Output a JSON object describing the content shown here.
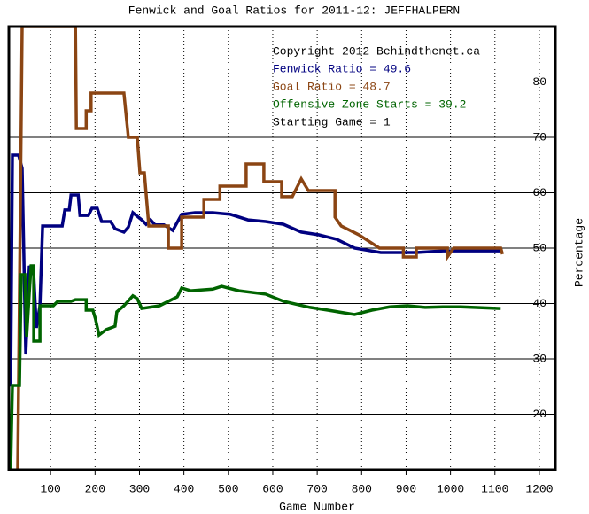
{
  "chart_data": {
    "type": "line",
    "title": "Fenwick and Goal Ratios for 2011-12: JEFFHALPERN",
    "xlabel": "Game Number",
    "ylabel": "Percentage",
    "xlim": [
      6,
      1236
    ],
    "ylim": [
      10,
      90
    ],
    "xticks": [
      100,
      200,
      300,
      400,
      500,
      600,
      700,
      800,
      900,
      1000,
      1100,
      1200
    ],
    "yticks": [
      20,
      30,
      40,
      50,
      60,
      70,
      80
    ],
    "grid": true,
    "legend_lines": [
      {
        "text": "Copyright 2012 Behindthenet.ca",
        "color": "#000000"
      },
      {
        "text": "Fenwick Ratio = 49.6",
        "color": "#000080"
      },
      {
        "text": "Goal Ratio = 48.7",
        "color": "#8b4513"
      },
      {
        "text": "Offensive Zone Starts = 39.2",
        "color": "#006400"
      },
      {
        "text": "Starting Game = 1",
        "color": "#000000"
      }
    ],
    "series": [
      {
        "color": "#000080",
        "x": [
          10,
          14,
          28,
          36,
          44,
          52,
          62,
          68,
          76,
          82,
          126,
          132,
          142,
          146,
          162,
          166,
          185,
          193,
          205,
          215,
          235,
          245,
          265,
          275,
          285,
          305,
          315,
          325,
          335,
          355,
          375,
          395,
          425,
          465,
          505,
          544,
          584,
          624,
          664,
          704,
          744,
          784,
          843,
          923,
          983,
          1063,
          1113
        ],
        "values": [
          25.0,
          66.8,
          66.8,
          64.4,
          30.8,
          46.8,
          45.2,
          35.6,
          39.6,
          54.0,
          54.0,
          56.9,
          56.9,
          59.6,
          59.6,
          55.9,
          55.9,
          57.2,
          57.2,
          54.8,
          54.8,
          53.5,
          52.9,
          53.8,
          56.4,
          55.1,
          54.3,
          55.1,
          54.2,
          54.2,
          53.2,
          56.1,
          56.4,
          56.4,
          56.1,
          55.1,
          54.8,
          54.3,
          52.9,
          52.4,
          51.6,
          50.0,
          49.2,
          49.2,
          49.5,
          49.5,
          49.5
        ]
      },
      {
        "color": "#8b4513",
        "x": [
          26,
          36,
          156,
          158,
          180,
          180,
          191,
          191,
          265,
          275,
          295,
          301,
          311,
          321,
          365,
          365,
          395,
          395,
          445,
          445,
          481,
          481,
          540,
          540,
          580,
          580,
          620,
          620,
          644,
          664,
          680,
          740,
          740,
          754,
          794,
          840,
          894,
          894,
          923,
          923,
          993,
          993,
          1007,
          1113,
          1117
        ],
        "values": [
          10,
          90,
          90,
          71.6,
          71.6,
          74.8,
          74.8,
          78,
          78,
          70,
          70,
          63.6,
          63.6,
          54,
          54,
          50,
          50,
          55.6,
          55.6,
          58.8,
          58.8,
          61.2,
          61.2,
          65.2,
          65.2,
          62,
          62,
          59.3,
          59.3,
          62.5,
          60.4,
          60.4,
          55.6,
          54,
          52.4,
          50,
          50,
          48.4,
          48.4,
          50,
          50,
          48.4,
          50,
          50,
          48.9
        ]
      },
      {
        "color": "#006400",
        "x": [
          10,
          14,
          30,
          34,
          42,
          46,
          52,
          56,
          62,
          62,
          76,
          76,
          106,
          116,
          146,
          156,
          180,
          180,
          195,
          201,
          209,
          225,
          245,
          249,
          265,
          285,
          295,
          305,
          345,
          365,
          385,
          395,
          415,
          465,
          485,
          524,
          584,
          624,
          684,
          724,
          784,
          823,
          863,
          903,
          943,
          983,
          1023,
          1113
        ],
        "values": [
          10,
          25.2,
          25.2,
          45.2,
          45.2,
          34,
          42,
          46.8,
          46.8,
          33.2,
          33.2,
          39.6,
          39.6,
          40.4,
          40.4,
          40.7,
          40.7,
          38.8,
          38.8,
          37.2,
          34.3,
          35.3,
          35.9,
          38.5,
          39.6,
          41.4,
          40.9,
          39.1,
          39.6,
          40.4,
          41.2,
          42.8,
          42.3,
          42.6,
          43.1,
          42.3,
          41.7,
          40.4,
          39.3,
          38.8,
          38,
          38.8,
          39.4,
          39.6,
          39.3,
          39.4,
          39.4,
          39.1
        ]
      }
    ]
  }
}
